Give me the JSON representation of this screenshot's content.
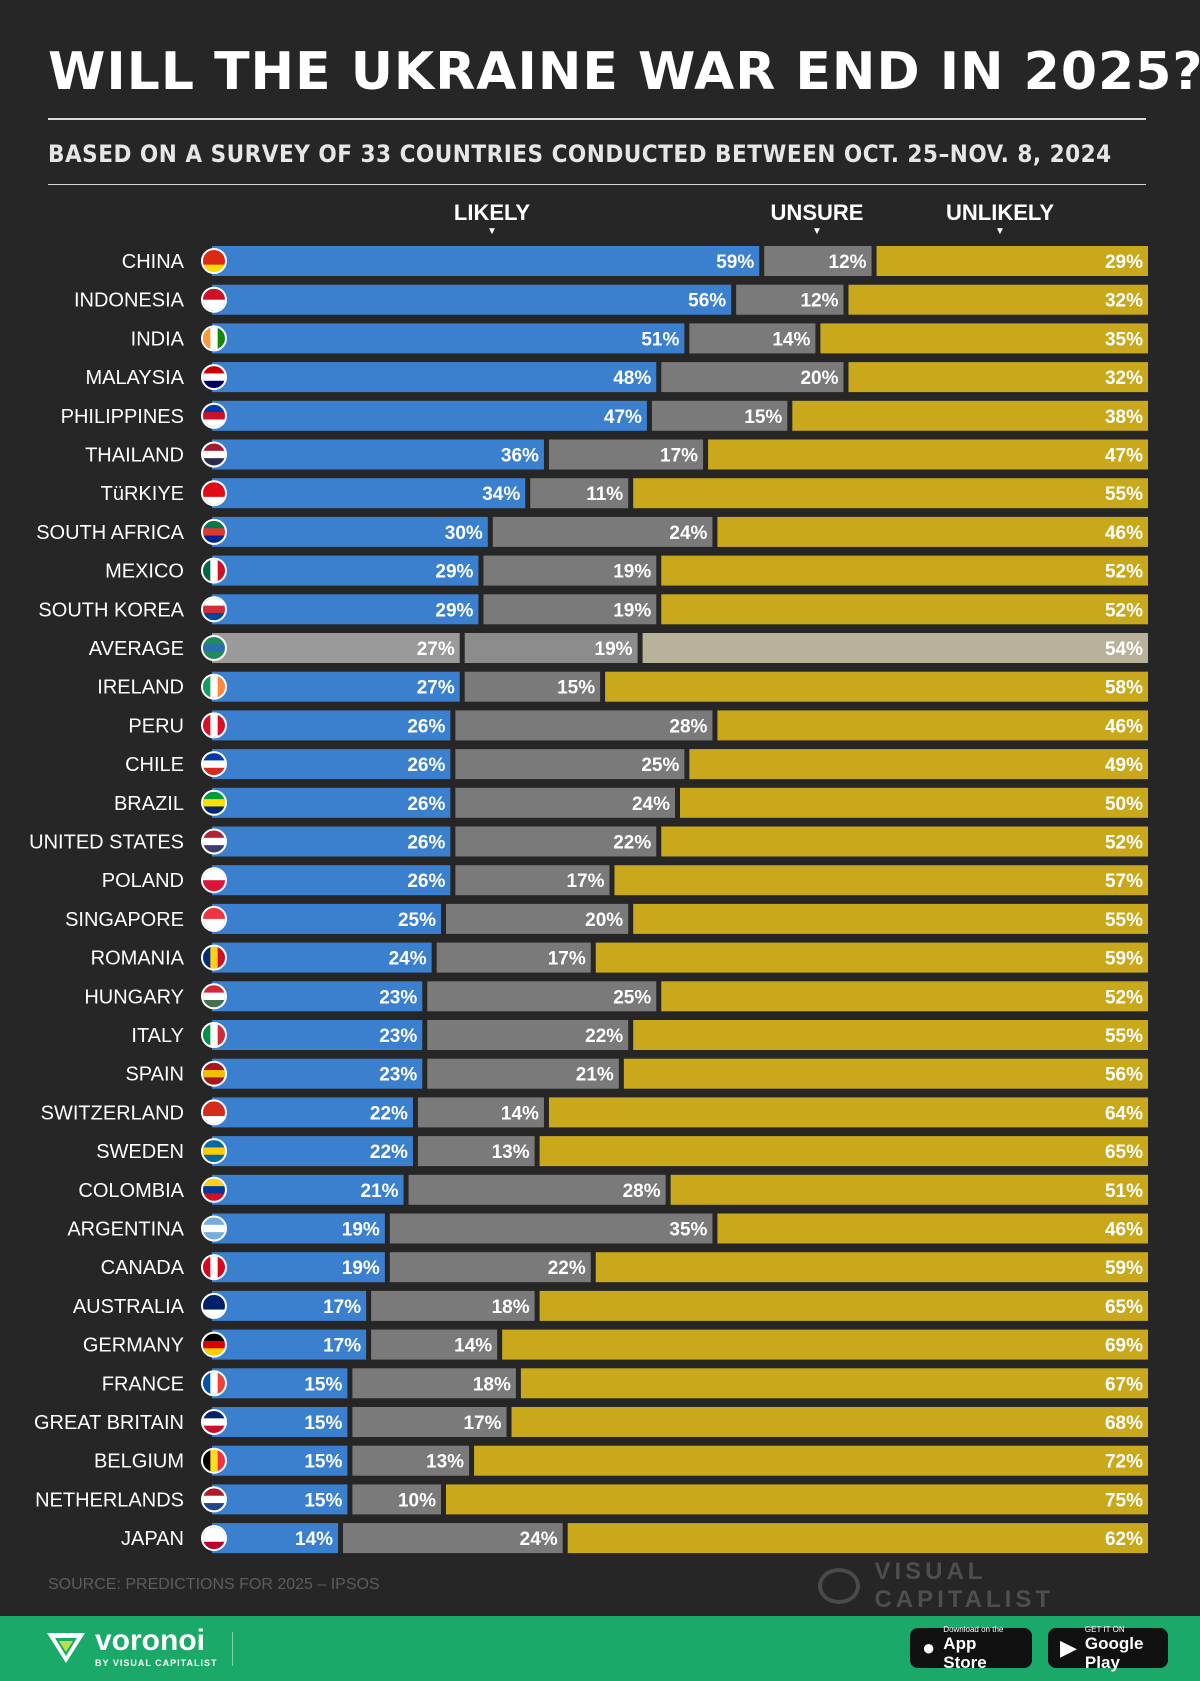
{
  "title": "WILL THE UKRAINE WAR END IN 2025?",
  "subtitle": "BASED ON A SURVEY OF 33 COUNTRIES CONDUCTED BETWEEN OCT. 25–NOV. 8, 2024",
  "source": "SOURCE: PREDICTIONS FOR 2025 – IPSOS",
  "brand": "VISUAL CAPITALIST",
  "footer": {
    "logo_text": "voronoi",
    "logo_sub": "BY VISUAL CAPITALIST",
    "app_store": {
      "small": "Download on the",
      "big": "App Store"
    },
    "google_play": {
      "small": "GET IT ON",
      "big": "Google Play"
    }
  },
  "colors": {
    "likely": "#3a80cf",
    "unsure": "#7a7a7a",
    "unlikely": "#c9a81b",
    "background": "#262626",
    "footer": "#1aa968"
  },
  "chart_data": {
    "type": "bar",
    "orientation": "horizontal-stacked-100",
    "unit": "%",
    "series": [
      {
        "name": "LIKELY",
        "values": [
          59,
          56,
          51,
          48,
          47,
          36,
          34,
          30,
          29,
          29,
          27,
          27,
          26,
          26,
          26,
          26,
          26,
          25,
          24,
          23,
          23,
          23,
          22,
          22,
          21,
          19,
          19,
          17,
          17,
          15,
          15,
          15,
          15,
          14
        ]
      },
      {
        "name": "UNSURE",
        "values": [
          12,
          12,
          14,
          20,
          15,
          17,
          11,
          24,
          19,
          19,
          19,
          15,
          28,
          25,
          24,
          22,
          17,
          20,
          17,
          25,
          22,
          21,
          14,
          13,
          28,
          35,
          22,
          18,
          14,
          18,
          17,
          13,
          10,
          24
        ]
      },
      {
        "name": "UNLIKELY",
        "values": [
          29,
          32,
          35,
          32,
          38,
          47,
          55,
          46,
          52,
          52,
          54,
          58,
          46,
          49,
          50,
          52,
          57,
          55,
          59,
          52,
          55,
          56,
          64,
          65,
          51,
          46,
          59,
          65,
          69,
          67,
          68,
          72,
          75,
          62
        ]
      }
    ],
    "categories": [
      "CHINA",
      "INDONESIA",
      "INDIA",
      "MALAYSIA",
      "PHILIPPINES",
      "THAILAND",
      "TüRKIYE",
      "SOUTH AFRICA",
      "MEXICO",
      "SOUTH KOREA",
      "AVERAGE",
      "IRELAND",
      "PERU",
      "CHILE",
      "BRAZIL",
      "UNITED STATES",
      "POLAND",
      "SINGAPORE",
      "ROMANIA",
      "HUNGARY",
      "ITALY",
      "SPAIN",
      "SWITZERLAND",
      "SWEDEN",
      "COLOMBIA",
      "ARGENTINA",
      "CANADA",
      "AUSTRALIA",
      "GERMANY",
      "FRANCE",
      "GREAT BRITAIN",
      "BELGIUM",
      "NETHERLANDS",
      "JAPAN"
    ],
    "flags": [
      "flag-china-icon",
      "flag-indonesia-icon",
      "flag-india-icon",
      "flag-malaysia-icon",
      "flag-philippines-icon",
      "flag-thailand-icon",
      "flag-turkiye-icon",
      "flag-south-africa-icon",
      "flag-mexico-icon",
      "flag-south-korea-icon",
      "globe-icon",
      "flag-ireland-icon",
      "flag-peru-icon",
      "flag-chile-icon",
      "flag-brazil-icon",
      "flag-united-states-icon",
      "flag-poland-icon",
      "flag-singapore-icon",
      "flag-romania-icon",
      "flag-hungary-icon",
      "flag-italy-icon",
      "flag-spain-icon",
      "flag-switzerland-icon",
      "flag-sweden-icon",
      "flag-colombia-icon",
      "flag-argentina-icon",
      "flag-canada-icon",
      "flag-australia-icon",
      "flag-germany-icon",
      "flag-france-icon",
      "flag-great-britain-icon",
      "flag-belgium-icon",
      "flag-netherlands-icon",
      "flag-japan-icon"
    ],
    "highlight_category": "AVERAGE",
    "xlim": [
      0,
      100
    ],
    "grid": false,
    "legend": "top column headers"
  }
}
